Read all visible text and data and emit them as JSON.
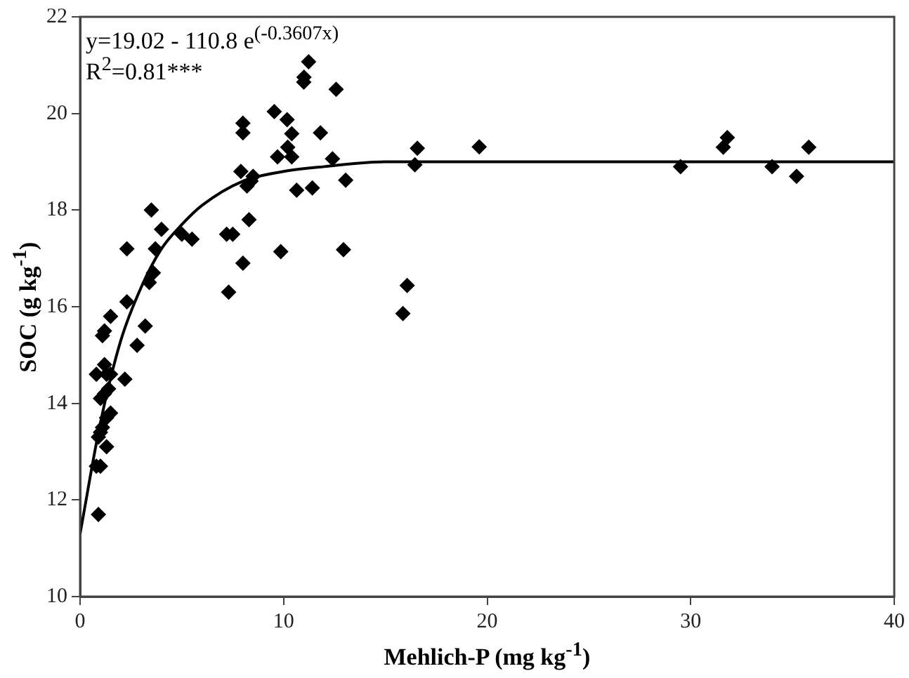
{
  "chart_data": {
    "type": "scatter",
    "xlabel": "Mehlich-P (mg kg$^{-1}$)",
    "ylabel": "SOC (g kg$^{-1}$)",
    "annotations": [
      "y=19.02 - 110.8 e$^{(-0.3607x)}$",
      "R$^{2}$=0.81***"
    ],
    "xlim": [
      0,
      40
    ],
    "xticks": [
      0,
      10,
      20,
      30,
      40
    ],
    "ylim": [
      10,
      22
    ],
    "yticks": [
      10,
      12,
      14,
      16,
      18,
      20,
      22
    ],
    "grid": false,
    "legend": false,
    "marker": "diamond",
    "series": [
      {
        "color": "#000000",
        "x": [
          0.9,
          0.8,
          1.0,
          0.9,
          1.0,
          1.3,
          1.1,
          1.5,
          1.3,
          1.0,
          1.2,
          1.4,
          0.8,
          1.2,
          1.5,
          1.3,
          1.1,
          1.2,
          1.5,
          2.2,
          2.3,
          2.8,
          3.2,
          2.3,
          3.4,
          3.6,
          3.5,
          3.7,
          4.0,
          5.0,
          5.5,
          7.2,
          7.5,
          7.3,
          8.0,
          8.3,
          7.9,
          8.0,
          8.0,
          8.2,
          8.5,
          8.4,
          9.54,
          9.7,
          10.17,
          10.4,
          10.2,
          10.4,
          10.64,
          11.0,
          11.23,
          10.99,
          11.41,
          11.81,
          12.4,
          12.58,
          13.05,
          12.94,
          9.86,
          16.07,
          15.86,
          16.57,
          16.45,
          19.61,
          29.5,
          31.6,
          31.8,
          34.0,
          35.2,
          35.8
        ],
        "values": [
          11.7,
          12.7,
          12.7,
          13.3,
          13.4,
          13.1,
          13.5,
          13.8,
          13.7,
          14.1,
          14.2,
          14.3,
          14.6,
          14.8,
          14.6,
          14.6,
          15.4,
          15.5,
          15.8,
          14.5,
          16.1,
          15.2,
          15.6,
          17.2,
          16.5,
          16.7,
          18.0,
          17.2,
          17.6,
          17.5,
          17.4,
          17.5,
          17.5,
          16.3,
          16.9,
          17.8,
          18.8,
          19.6,
          19.8,
          18.5,
          18.7,
          18.6,
          20.04,
          19.1,
          19.87,
          19.58,
          19.3,
          19.1,
          18.41,
          20.75,
          21.07,
          20.65,
          18.46,
          19.6,
          19.06,
          20.5,
          18.62,
          17.18,
          17.14,
          16.44,
          15.86,
          19.28,
          18.94,
          19.31,
          18.9,
          19.3,
          19.5,
          18.9,
          18.7,
          19.3
        ]
      },
      {
        "type": "line",
        "color": "#000000",
        "marker": "none",
        "x": [
          0,
          1,
          2,
          3,
          4,
          5,
          6,
          8,
          10,
          12,
          15,
          20,
          30,
          40
        ],
        "values": [
          11.3,
          13.6,
          15.3,
          16.4,
          17.2,
          17.7,
          18.1,
          18.6,
          18.8,
          18.9,
          19.0,
          19.0,
          19.0,
          19.0
        ]
      }
    ]
  }
}
